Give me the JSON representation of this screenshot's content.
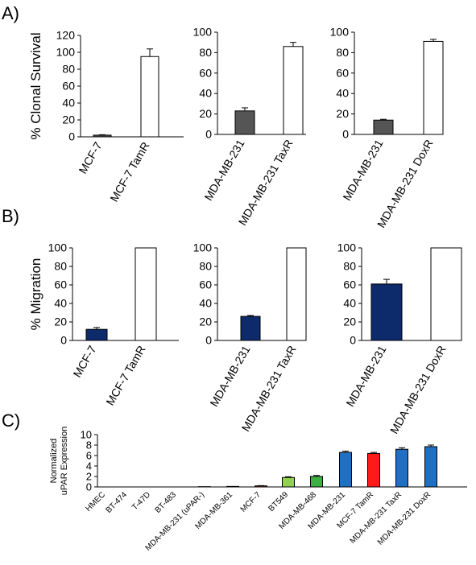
{
  "panel_labels": {
    "a": "A)",
    "b": "B)",
    "c": "C)"
  },
  "chart_data": [
    {
      "id": "A1",
      "type": "bar",
      "panel": "A",
      "ylabel": "% Clonal Survival",
      "ylim": [
        0,
        120
      ],
      "yticks": [
        "0",
        "20",
        "40",
        "60",
        "80",
        "100",
        "120"
      ],
      "categories": [
        "MCF-7",
        "MCF-7 TamR"
      ],
      "series": [
        {
          "values": [
            2,
            95
          ],
          "errors": [
            0.5,
            9
          ]
        }
      ],
      "colors": [
        "#555555",
        "#ffffff"
      ]
    },
    {
      "id": "A2",
      "type": "bar",
      "panel": "A",
      "ylabel": "",
      "ylim": [
        0,
        100
      ],
      "yticks": [
        "0",
        "20",
        "40",
        "60",
        "80",
        "100"
      ],
      "categories": [
        "MDA-MB-231",
        "MDA-MB-231 TaxR"
      ],
      "series": [
        {
          "values": [
            23,
            86
          ],
          "errors": [
            3,
            4
          ]
        }
      ],
      "colors": [
        "#555555",
        "#ffffff"
      ]
    },
    {
      "id": "A3",
      "type": "bar",
      "panel": "A",
      "ylabel": "",
      "ylim": [
        0,
        100
      ],
      "yticks": [
        "0",
        "20",
        "40",
        "60",
        "80",
        "100"
      ],
      "categories": [
        "MDA-MB-231",
        "MDA-MB-231 DoxR"
      ],
      "series": [
        {
          "values": [
            14,
            91
          ],
          "errors": [
            0.8,
            2
          ]
        }
      ],
      "colors": [
        "#555555",
        "#ffffff"
      ]
    },
    {
      "id": "B1",
      "type": "bar",
      "panel": "B",
      "ylabel": "% Migration",
      "ylim": [
        0,
        100
      ],
      "yticks": [
        "0",
        "20",
        "40",
        "60",
        "80",
        "100"
      ],
      "categories": [
        "MCF-7",
        "MCF-7 TamR"
      ],
      "series": [
        {
          "values": [
            12,
            100
          ],
          "errors": [
            2,
            0
          ]
        }
      ],
      "colors": [
        "#0d2a6b",
        "#ffffff"
      ]
    },
    {
      "id": "B2",
      "type": "bar",
      "panel": "B",
      "ylabel": "",
      "ylim": [
        0,
        100
      ],
      "yticks": [
        "0",
        "20",
        "40",
        "60",
        "80",
        "100"
      ],
      "categories": [
        "MDA-MB-231",
        "MDA-MB-231 TaxR"
      ],
      "series": [
        {
          "values": [
            26,
            100
          ],
          "errors": [
            1,
            0
          ]
        }
      ],
      "colors": [
        "#0d2a6b",
        "#ffffff"
      ]
    },
    {
      "id": "B3",
      "type": "bar",
      "panel": "B",
      "ylabel": "",
      "ylim": [
        0,
        100
      ],
      "yticks": [
        "0",
        "20",
        "40",
        "60",
        "80",
        "100"
      ],
      "categories": [
        "MDA-MB-231",
        "MDA-MB-231 DoxR"
      ],
      "series": [
        {
          "values": [
            61,
            100
          ],
          "errors": [
            5,
            0
          ]
        }
      ],
      "colors": [
        "#0d2a6b",
        "#ffffff"
      ]
    },
    {
      "id": "C",
      "type": "bar",
      "panel": "C",
      "ylabel_lines": [
        "Normalized",
        "uPAR Expression"
      ],
      "ylim": [
        0,
        10
      ],
      "yticks": [
        "0",
        "2",
        "4",
        "6",
        "8",
        "10"
      ],
      "categories": [
        "HMEC",
        "BT-474",
        "T-47D",
        "BT-483",
        "MDA-MB-231 (uPAR-)",
        "MDA-MB-361",
        "MCF-7",
        "BT549",
        "MDA-MB-468",
        "MDA-MB-231",
        "MCF-7 TamR",
        "MDA-MB-231 TaxR",
        "MDA-MB-231 DoxR"
      ],
      "series": [
        {
          "values": [
            0,
            0,
            0,
            0,
            0.05,
            0.1,
            0.2,
            1.8,
            2.0,
            6.6,
            6.4,
            7.2,
            7.7
          ],
          "errors": [
            0,
            0,
            0,
            0,
            0,
            0,
            0.05,
            0.15,
            0.2,
            0.25,
            0.2,
            0.3,
            0.3
          ]
        }
      ],
      "colors": [
        "#7f7f7f",
        "#7f7f7f",
        "#7f7f7f",
        "#7f7f7f",
        "#7f7f7f",
        "#7f7f7f",
        "#c0392b",
        "#92d050",
        "#3bb143",
        "#1f6fc5",
        "#ff1a1a",
        "#1f6fc5",
        "#1f6fc5"
      ]
    }
  ]
}
